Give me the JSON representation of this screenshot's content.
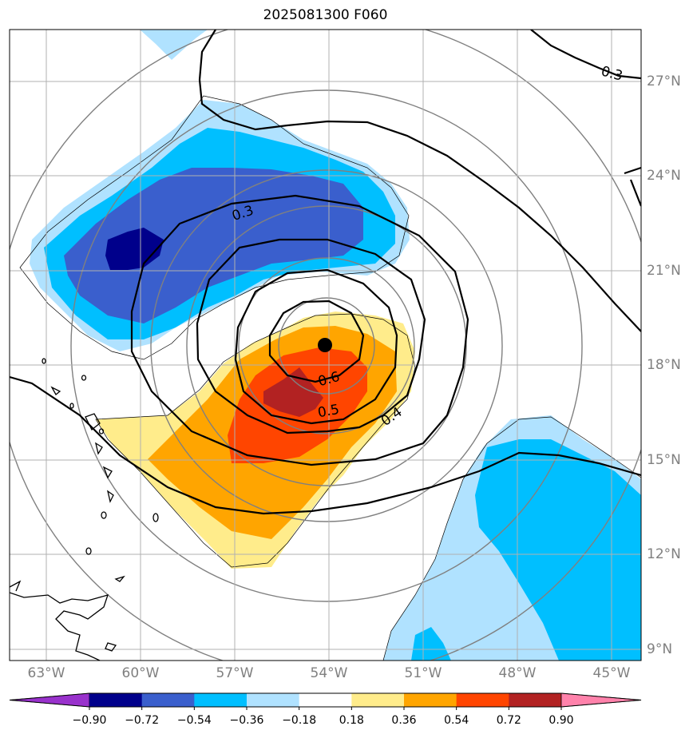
{
  "title": "2025081300 F060",
  "lat_ticks": [
    "27°N",
    "24°N",
    "21°N",
    "18°N",
    "15°N",
    "12°N",
    "9°N"
  ],
  "lon_ticks": [
    "63°W",
    "60°W",
    "57°W",
    "54°W",
    "51°W",
    "48°W",
    "45°W"
  ],
  "contour_labels": [
    "0.3",
    "0.3",
    "0.4",
    "0.5",
    "0.6"
  ],
  "colorbar": {
    "labels": [
      "−0.90",
      "−0.72",
      "−0.54",
      "−0.36",
      "−0.18",
      "0.18",
      "0.36",
      "0.54",
      "0.72",
      "0.90"
    ],
    "colors": [
      "#9932cc",
      "#00008b",
      "#3a5fcd",
      "#00bfff",
      "#b0e2ff",
      "#ffffff",
      "#ffec8b",
      "#ffa500",
      "#ff4500",
      "#b22222",
      "#ff82ab"
    ]
  },
  "center_marker": "storm-center-dot"
}
